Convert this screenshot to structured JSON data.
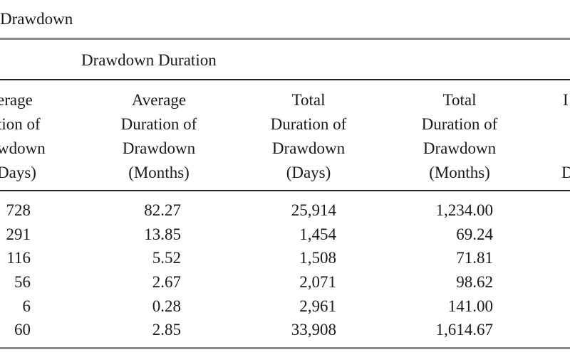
{
  "title": "Drawdown",
  "group_header": "Drawdown Duration",
  "columns": [
    {
      "lines": [
        "erage",
        "tion of",
        "wdown",
        "Days)"
      ]
    },
    {
      "lines": [
        "Average",
        "Duration of",
        "Drawdown",
        "(Months)"
      ]
    },
    {
      "lines": [
        "Total",
        "Duration of",
        "Drawdown",
        "(Days)"
      ]
    },
    {
      "lines": [
        "Total",
        "Duration of",
        "Drawdown",
        "(Months)"
      ]
    },
    {
      "lines": [
        "I",
        "",
        "",
        "D"
      ]
    }
  ],
  "rows": [
    [
      "728",
      "82.27",
      "25,914",
      "1,234.00"
    ],
    [
      "291",
      "13.85",
      "1,454",
      "69.24"
    ],
    [
      "116",
      "5.52",
      "1,508",
      "71.81"
    ],
    [
      "56",
      "2.67",
      "2,071",
      "98.62"
    ],
    [
      "6",
      "0.28",
      "2,961",
      "141.00"
    ],
    [
      "60",
      "2.85",
      "33,908",
      "1,614.67"
    ]
  ]
}
